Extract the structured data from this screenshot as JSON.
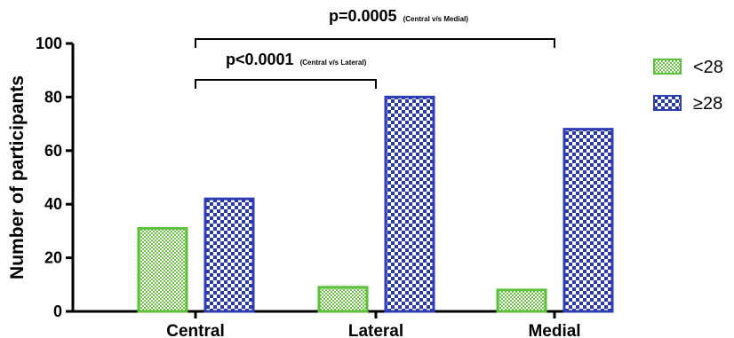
{
  "chart_data": {
    "type": "bar",
    "title": "",
    "xlabel": "",
    "ylabel": "Number of participants",
    "categories": [
      "Central",
      "Lateral",
      "Medial"
    ],
    "series": [
      {
        "name": "<28",
        "values": [
          31,
          9,
          8
        ],
        "color": "#6cc04a",
        "edge": "#5cc13a",
        "pattern": "fine-checker"
      },
      {
        "name": "≥28",
        "values": [
          42,
          80,
          68
        ],
        "color": "#2b3aa0",
        "edge": "#2f3db5",
        "pattern": "coarse-checker"
      }
    ],
    "ylim": [
      0,
      100
    ],
    "yticks": [
      0,
      20,
      40,
      60,
      80,
      100
    ],
    "grid": false,
    "legend_position": "top-right",
    "annotations": [
      {
        "main": "p=0.0005",
        "sub": "(Central v/s Medial)",
        "from": "Central",
        "to": "Medial"
      },
      {
        "main": "p<0.0001",
        "sub": "(Central v/s Lateral)",
        "from": "Central",
        "to": "Lateral"
      }
    ]
  }
}
